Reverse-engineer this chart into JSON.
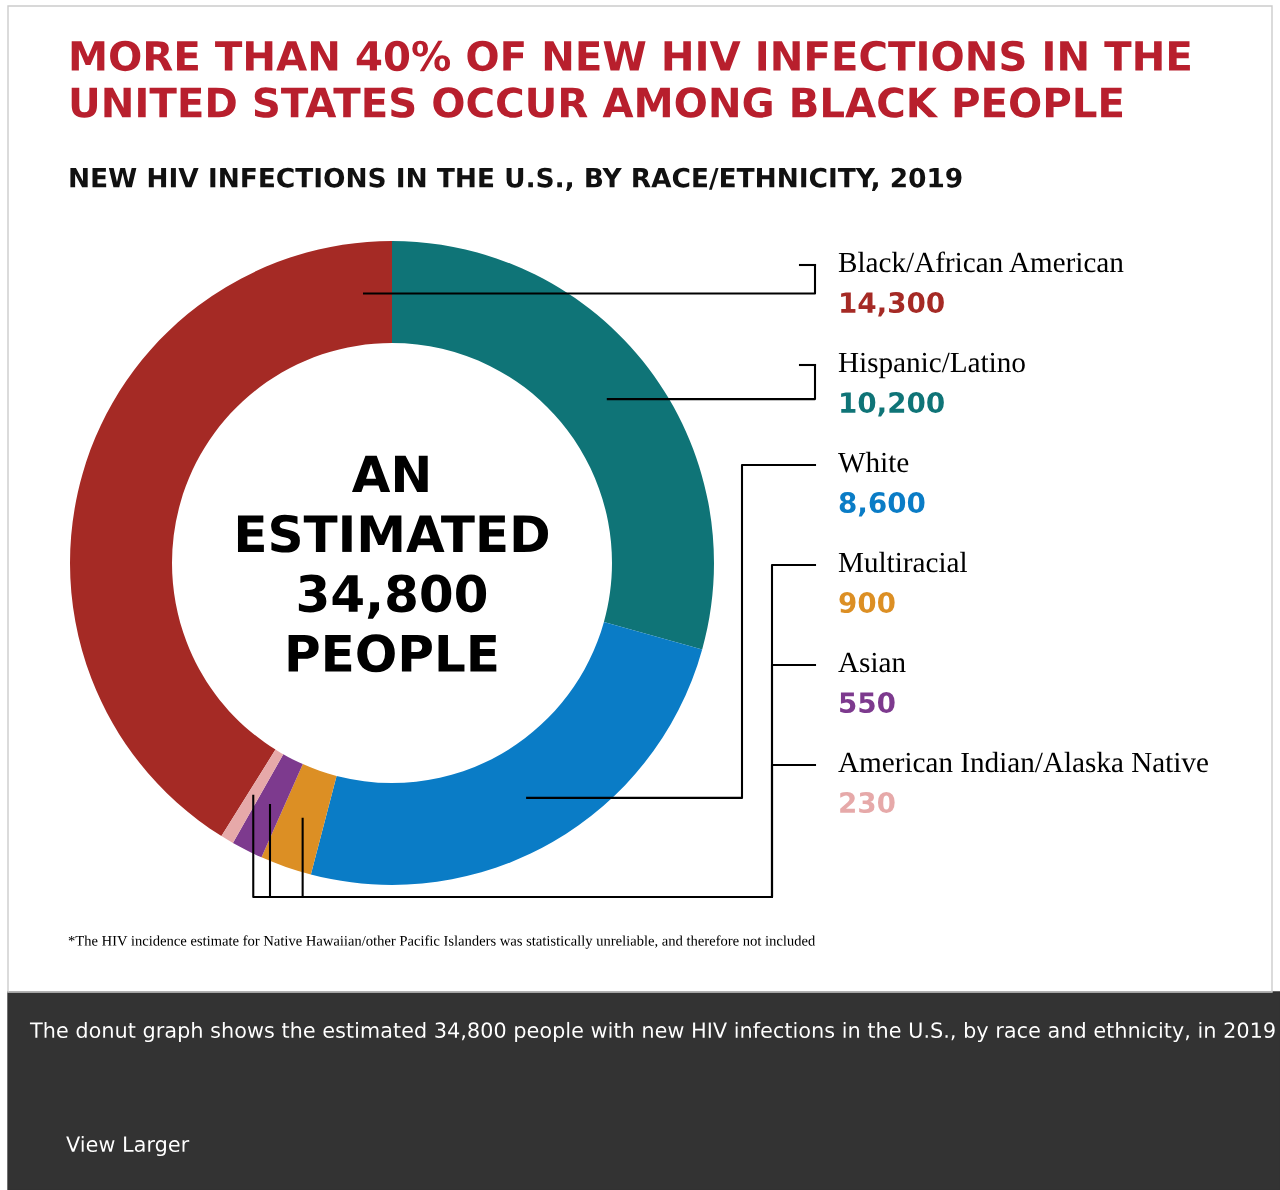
{
  "chart_data": {
    "type": "donut",
    "title": "MORE THAN 40% OF NEW HIV INFECTIONS IN THE UNITED STATES OCCUR AMONG BLACK PEOPLE",
    "subtitle": "NEW HIV INFECTIONS IN THE U.S., BY RACE/ETHNICITY, 2019",
    "categories": [
      "Black/African American",
      "Hispanic/Latino",
      "White",
      "Multiracial",
      "Asian",
      "American Indian/Alaska Native"
    ],
    "values": [
      14300,
      10200,
      8600,
      900,
      550,
      230
    ],
    "value_labels": [
      "14,300",
      "10,200",
      "8,600",
      "900",
      "550",
      "230"
    ],
    "colors": [
      "#a52a25",
      "#0f7477",
      "#0a7cc6",
      "#dc8f24",
      "#7d3a8e",
      "#e6a9a9"
    ],
    "annotations": [
      "AN\nESTIMATED\n34,800\nPEOPLE",
      "*The HIV incidence estimate for Native Hawaiian/other Pacific Islanders was statistically unreliable, and therefore not included",
      "The donut graph shows the estimated 34,800 people with new HIV infections in the U.S., by race and ethnicity, in 2019",
      "View Larger"
    ]
  }
}
